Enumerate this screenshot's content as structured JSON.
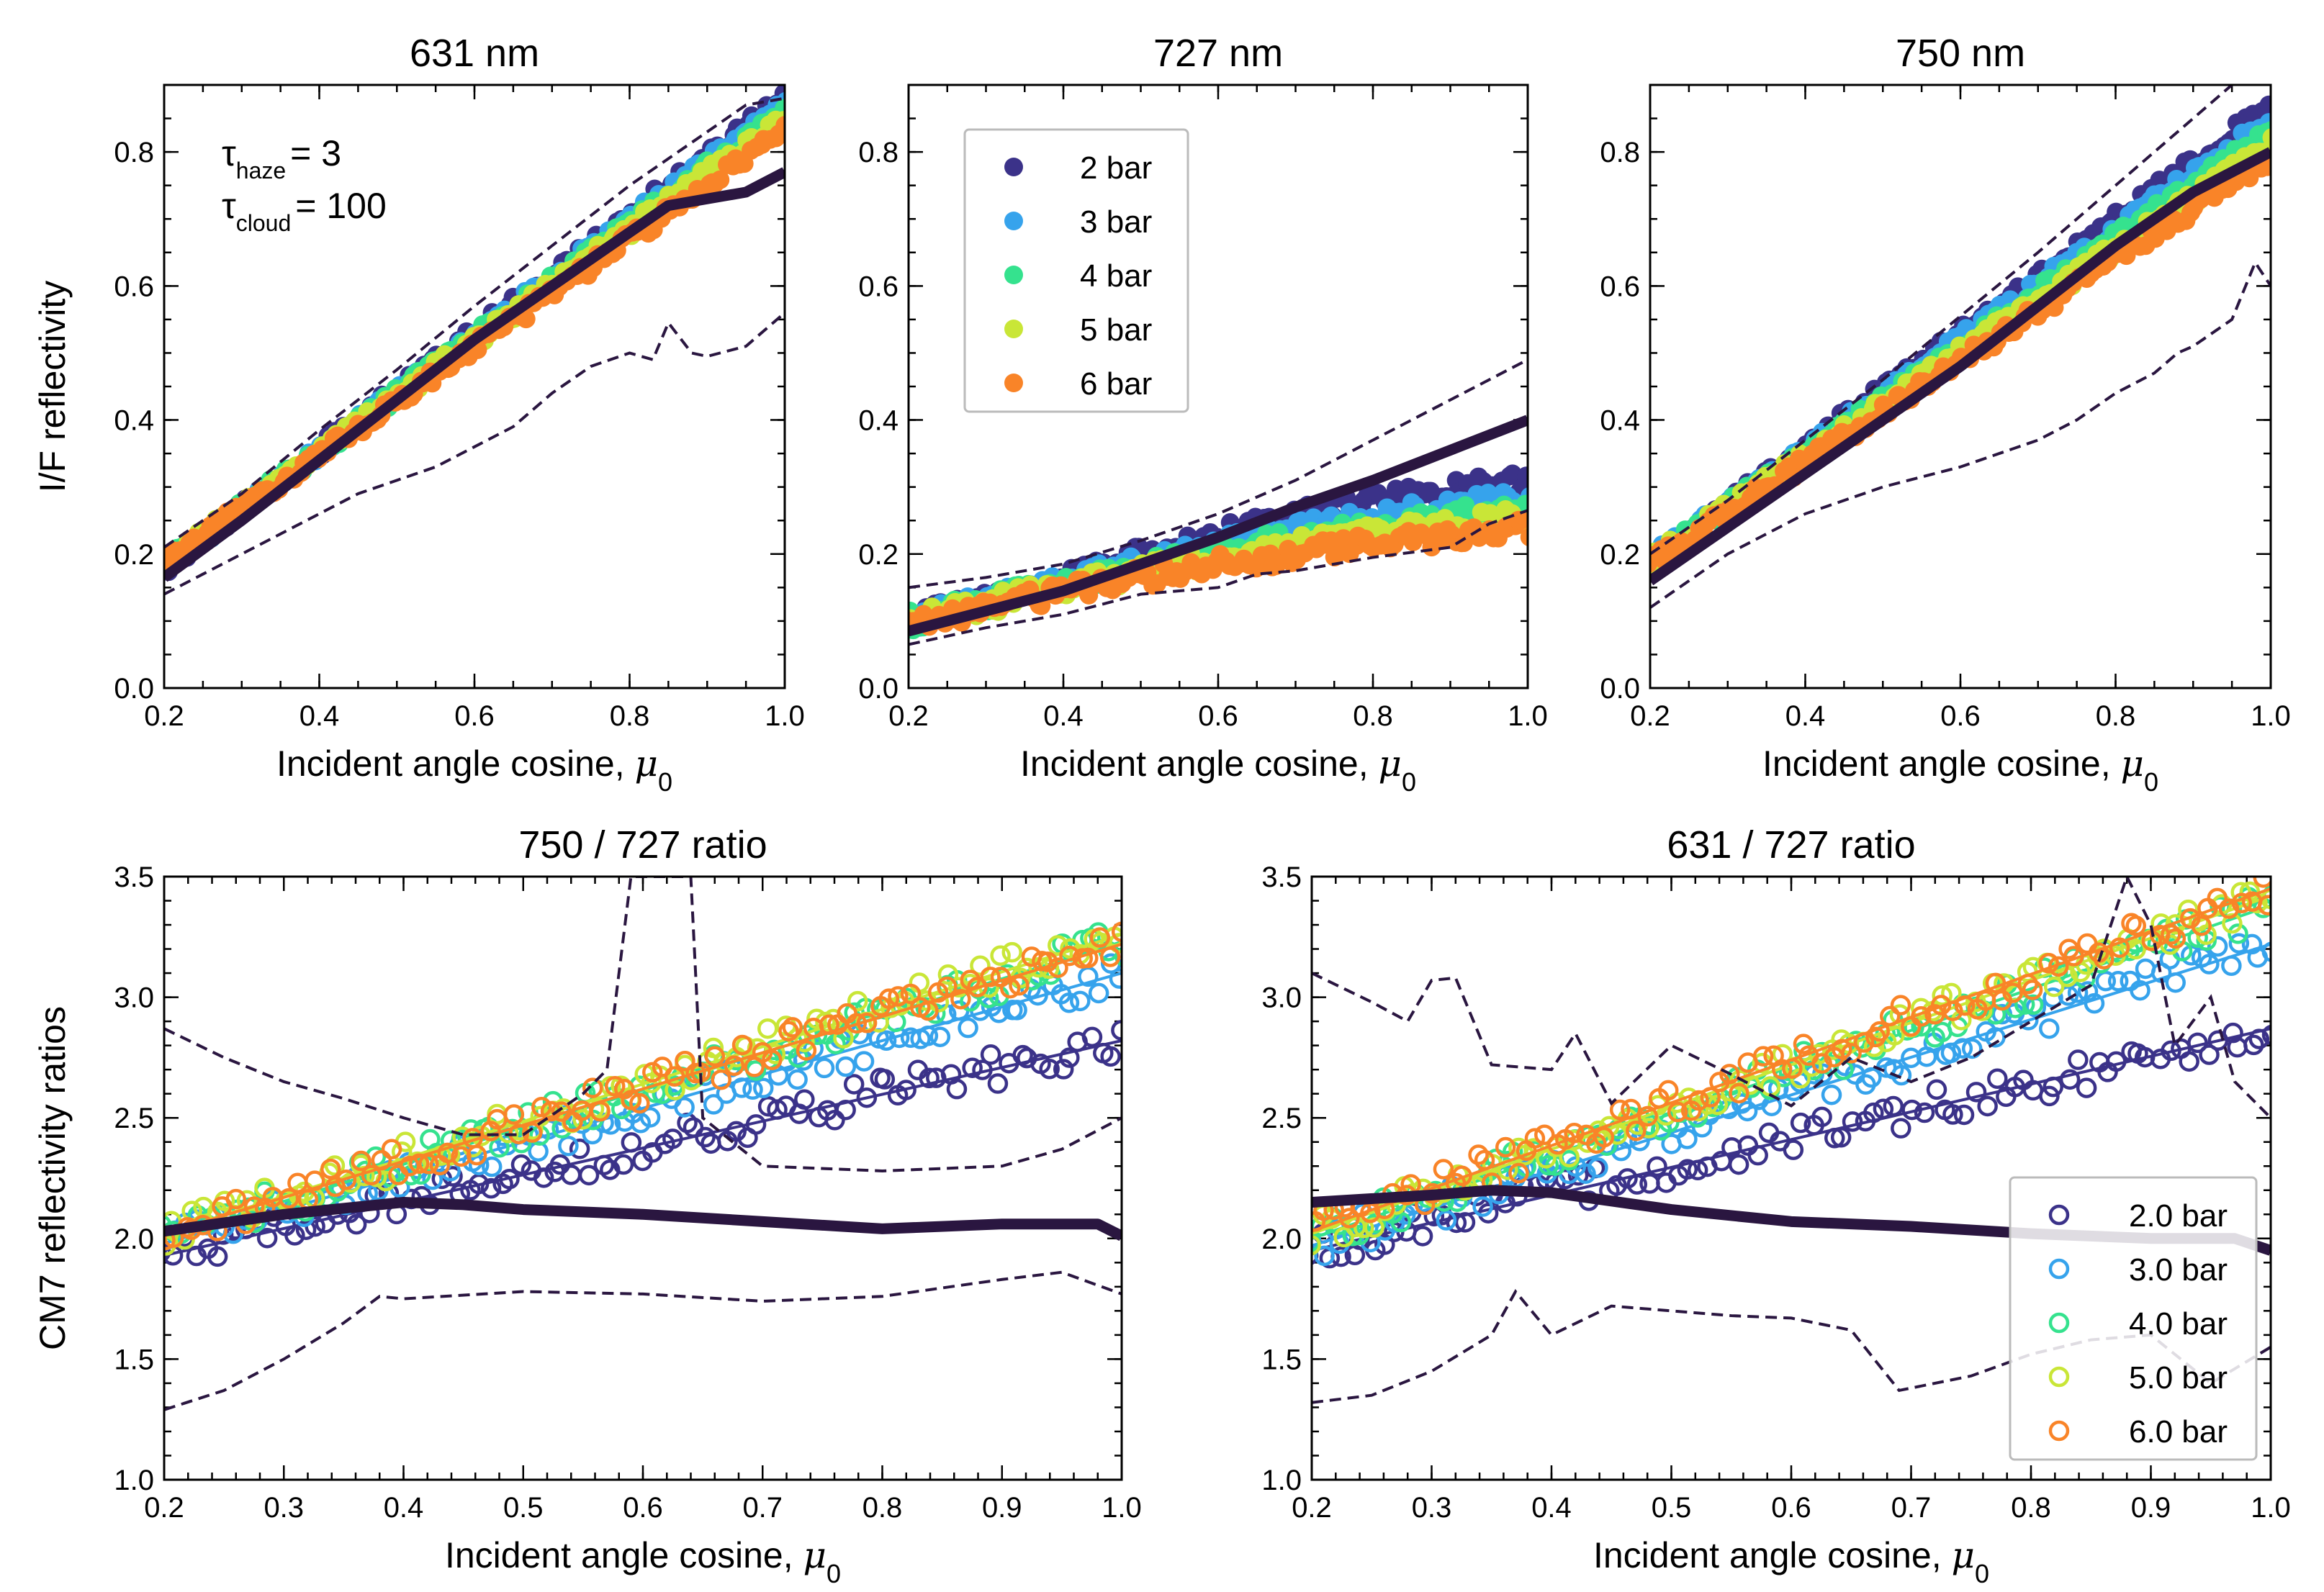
{
  "chart_data": [
    {
      "id": "p631",
      "type": "scatter",
      "title": "631 nm",
      "xlabel": "Incident angle cosine, ",
      "xlabel_symbol": "μ",
      "xlabel_sub": "0",
      "ylabel": "I/F reflectivity",
      "xlim": [
        0.2,
        1.0
      ],
      "ylim": [
        0.0,
        0.9
      ],
      "xticks": [
        "0.2",
        "0.4",
        "0.6",
        "0.8",
        "1.0"
      ],
      "yticks": [
        "0.0",
        "0.2",
        "0.4",
        "0.6",
        "0.8"
      ],
      "series": [
        {
          "name": "2 bar",
          "color": "#3b3289",
          "x": [
            0.2,
            1.0
          ],
          "y": [
            0.18,
            0.88
          ]
        },
        {
          "name": "3 bar",
          "color": "#36a3ec",
          "x": [
            0.2,
            1.0
          ],
          "y": [
            0.182,
            0.87
          ]
        },
        {
          "name": "4 bar",
          "color": "#35e28e",
          "x": [
            0.2,
            1.0
          ],
          "y": [
            0.184,
            0.86
          ]
        },
        {
          "name": "5 bar",
          "color": "#c9e637",
          "x": [
            0.2,
            1.0
          ],
          "y": [
            0.186,
            0.85
          ]
        },
        {
          "name": "6 bar",
          "color": "#f98428",
          "x": [
            0.2,
            1.0
          ],
          "y": [
            0.188,
            0.83
          ]
        }
      ],
      "observed": {
        "color": "#2a1640",
        "mean": {
          "x": [
            0.2,
            0.3,
            0.4,
            0.5,
            0.6,
            0.7,
            0.8,
            0.85,
            0.9,
            0.95,
            1.0
          ],
          "y": [
            0.165,
            0.25,
            0.34,
            0.43,
            0.52,
            0.6,
            0.68,
            0.72,
            0.73,
            0.74,
            0.77
          ]
        },
        "upper": {
          "x": [
            0.2,
            0.3,
            0.4,
            0.5,
            0.6,
            0.7,
            0.8,
            0.9,
            0.95,
            1.0
          ],
          "y": [
            0.21,
            0.29,
            0.385,
            0.475,
            0.57,
            0.66,
            0.75,
            0.83,
            0.87,
            0.88
          ]
        },
        "lower": {
          "x": [
            0.2,
            0.25,
            0.3,
            0.35,
            0.4,
            0.45,
            0.5,
            0.55,
            0.6,
            0.65,
            0.7,
            0.75,
            0.8,
            0.83,
            0.85,
            0.88,
            0.9,
            0.95,
            1.0
          ],
          "y": [
            0.14,
            0.17,
            0.2,
            0.23,
            0.26,
            0.29,
            0.31,
            0.33,
            0.36,
            0.39,
            0.44,
            0.48,
            0.5,
            0.49,
            0.545,
            0.5,
            0.495,
            0.51,
            0.56
          ]
        }
      }
    },
    {
      "id": "p727",
      "type": "scatter",
      "title": "727 nm",
      "xlabel": "Incident angle cosine, ",
      "xlabel_symbol": "μ",
      "xlabel_sub": "0",
      "ylabel": "",
      "xlim": [
        0.2,
        1.0
      ],
      "ylim": [
        0.0,
        0.9
      ],
      "xticks": [
        "0.2",
        "0.4",
        "0.6",
        "0.8",
        "1.0"
      ],
      "yticks": [
        "0.0",
        "0.2",
        "0.4",
        "0.6",
        "0.8"
      ],
      "series": [
        {
          "name": "2 bar",
          "color": "#3b3289",
          "x": [
            0.2,
            0.4,
            0.6,
            0.8,
            1.0
          ],
          "y": [
            0.1,
            0.165,
            0.23,
            0.28,
            0.31
          ]
        },
        {
          "name": "3 bar",
          "color": "#36a3ec",
          "x": [
            0.2,
            0.4,
            0.6,
            0.8,
            1.0
          ],
          "y": [
            0.1,
            0.16,
            0.215,
            0.255,
            0.285
          ]
        },
        {
          "name": "4 bar",
          "color": "#35e28e",
          "x": [
            0.2,
            0.4,
            0.6,
            0.8,
            1.0
          ],
          "y": [
            0.1,
            0.155,
            0.205,
            0.24,
            0.27
          ]
        },
        {
          "name": "5 bar",
          "color": "#c9e637",
          "x": [
            0.2,
            0.4,
            0.6,
            0.8,
            1.0
          ],
          "y": [
            0.1,
            0.15,
            0.195,
            0.23,
            0.255
          ]
        },
        {
          "name": "6 bar",
          "color": "#f98428",
          "x": [
            0.2,
            0.4,
            0.6,
            0.8,
            1.0
          ],
          "y": [
            0.095,
            0.145,
            0.185,
            0.215,
            0.24
          ]
        }
      ],
      "observed": {
        "color": "#2a1640",
        "mean": {
          "x": [
            0.2,
            0.3,
            0.4,
            0.5,
            0.6,
            0.7,
            0.8,
            0.9,
            1.0
          ],
          "y": [
            0.085,
            0.115,
            0.145,
            0.185,
            0.225,
            0.27,
            0.31,
            0.355,
            0.4
          ]
        },
        "upper": {
          "x": [
            0.2,
            0.3,
            0.4,
            0.5,
            0.6,
            0.7,
            0.8,
            0.9,
            1.0
          ],
          "y": [
            0.15,
            0.165,
            0.185,
            0.22,
            0.26,
            0.31,
            0.37,
            0.43,
            0.49
          ]
        },
        "lower": {
          "x": [
            0.2,
            0.3,
            0.4,
            0.5,
            0.6,
            0.65,
            0.7,
            0.8,
            0.9,
            0.95,
            1.0
          ],
          "y": [
            0.065,
            0.09,
            0.11,
            0.14,
            0.15,
            0.17,
            0.175,
            0.195,
            0.21,
            0.245,
            0.265
          ]
        }
      },
      "legend": {
        "position": "upper-left",
        "marker": "filled",
        "labels": [
          "2 bar",
          "3 bar",
          "4 bar",
          "5 bar",
          "6 bar"
        ]
      }
    },
    {
      "id": "p750",
      "type": "scatter",
      "title": "750 nm",
      "xlabel": "Incident angle cosine, ",
      "xlabel_symbol": "μ",
      "xlabel_sub": "0",
      "ylabel": "",
      "xlim": [
        0.2,
        1.0
      ],
      "ylim": [
        0.0,
        0.9
      ],
      "xticks": [
        "0.2",
        "0.4",
        "0.6",
        "0.8",
        "1.0"
      ],
      "yticks": [
        "0.0",
        "0.2",
        "0.4",
        "0.6",
        "0.8"
      ],
      "series": [
        {
          "name": "2 bar",
          "color": "#3b3289",
          "x": [
            0.2,
            1.0
          ],
          "y": [
            0.19,
            0.87
          ]
        },
        {
          "name": "3 bar",
          "color": "#36a3ec",
          "x": [
            0.2,
            1.0
          ],
          "y": [
            0.19,
            0.85
          ]
        },
        {
          "name": "4 bar",
          "color": "#35e28e",
          "x": [
            0.2,
            1.0
          ],
          "y": [
            0.19,
            0.83
          ]
        },
        {
          "name": "5 bar",
          "color": "#c9e637",
          "x": [
            0.2,
            1.0
          ],
          "y": [
            0.19,
            0.81
          ]
        },
        {
          "name": "6 bar",
          "color": "#f98428",
          "x": [
            0.2,
            1.0
          ],
          "y": [
            0.185,
            0.79
          ]
        }
      ],
      "observed": {
        "color": "#2a1640",
        "mean": {
          "x": [
            0.2,
            0.3,
            0.4,
            0.5,
            0.6,
            0.7,
            0.8,
            0.9,
            0.95,
            1.0
          ],
          "y": [
            0.16,
            0.24,
            0.32,
            0.4,
            0.48,
            0.57,
            0.66,
            0.74,
            0.77,
            0.8
          ]
        },
        "upper": {
          "x": [
            0.2,
            0.3,
            0.4,
            0.5,
            0.6,
            0.7,
            0.8,
            0.9,
            0.95,
            1.0
          ],
          "y": [
            0.2,
            0.28,
            0.37,
            0.46,
            0.555,
            0.65,
            0.75,
            0.85,
            0.9,
            0.93
          ]
        },
        "lower": {
          "x": [
            0.2,
            0.3,
            0.4,
            0.5,
            0.6,
            0.7,
            0.75,
            0.8,
            0.85,
            0.88,
            0.9,
            0.95,
            0.98,
            1.0
          ],
          "y": [
            0.12,
            0.2,
            0.26,
            0.3,
            0.33,
            0.37,
            0.4,
            0.44,
            0.47,
            0.5,
            0.51,
            0.55,
            0.635,
            0.6
          ]
        }
      }
    },
    {
      "id": "r750",
      "type": "scatter",
      "title": "750 / 727 ratio",
      "xlabel": "Incident angle cosine, ",
      "xlabel_symbol": "μ",
      "xlabel_sub": "0",
      "ylabel": "CM7 reflectivity ratios",
      "xlim": [
        0.2,
        1.0
      ],
      "ylim": [
        1.0,
        3.5
      ],
      "xticks": [
        "0.2",
        "0.3",
        "0.4",
        "0.5",
        "0.6",
        "0.7",
        "0.8",
        "0.9",
        "1.0"
      ],
      "yticks": [
        "1.0",
        "1.5",
        "2.0",
        "2.5",
        "3.0",
        "3.5"
      ],
      "series": [
        {
          "name": "2.0 bar",
          "color": "#3b3289",
          "x": [
            0.2,
            1.0
          ],
          "y": [
            1.93,
            2.82
          ]
        },
        {
          "name": "3.0 bar",
          "color": "#36a3ec",
          "x": [
            0.2,
            1.0
          ],
          "y": [
            1.98,
            3.1
          ]
        },
        {
          "name": "4.0 bar",
          "color": "#35e28e",
          "x": [
            0.2,
            1.0
          ],
          "y": [
            2.0,
            3.23
          ]
        },
        {
          "name": "5.0 bar",
          "color": "#c9e637",
          "x": [
            0.2,
            1.0
          ],
          "y": [
            2.02,
            3.26
          ]
        },
        {
          "name": "6.0 bar",
          "color": "#f98428",
          "x": [
            0.2,
            1.0
          ],
          "y": [
            2.02,
            3.22
          ]
        }
      ],
      "observed": {
        "color": "#2a1640",
        "mean": {
          "x": [
            0.2,
            0.3,
            0.4,
            0.45,
            0.5,
            0.6,
            0.7,
            0.8,
            0.9,
            0.98,
            1.0
          ],
          "y": [
            2.03,
            2.1,
            2.15,
            2.14,
            2.12,
            2.1,
            2.07,
            2.04,
            2.06,
            2.06,
            2.01
          ]
        },
        "upper": {
          "x": [
            0.2,
            0.25,
            0.3,
            0.35,
            0.4,
            0.45,
            0.5,
            0.55,
            0.57,
            0.59,
            0.6,
            0.64,
            0.65,
            0.7,
            0.8,
            0.9,
            0.95,
            1.0
          ],
          "y": [
            2.87,
            2.75,
            2.65,
            2.58,
            2.5,
            2.43,
            2.43,
            2.6,
            2.7,
            3.5,
            3.5,
            3.5,
            2.5,
            2.3,
            2.28,
            2.3,
            2.37,
            2.5
          ]
        },
        "lower": {
          "x": [
            0.2,
            0.25,
            0.3,
            0.35,
            0.38,
            0.4,
            0.5,
            0.6,
            0.7,
            0.8,
            0.9,
            0.95,
            1.0
          ],
          "y": [
            1.29,
            1.37,
            1.5,
            1.65,
            1.76,
            1.75,
            1.78,
            1.77,
            1.74,
            1.76,
            1.83,
            1.86,
            1.77
          ]
        }
      }
    },
    {
      "id": "r631",
      "type": "scatter",
      "title": "631 / 727 ratio",
      "xlabel": "Incident angle cosine, ",
      "xlabel_symbol": "μ",
      "xlabel_sub": "0",
      "ylabel": "",
      "xlim": [
        0.2,
        1.0
      ],
      "ylim": [
        1.0,
        3.5
      ],
      "xticks": [
        "0.2",
        "0.3",
        "0.4",
        "0.5",
        "0.6",
        "0.7",
        "0.8",
        "0.9",
        "1.0"
      ],
      "yticks": [
        "1.0",
        "1.5",
        "2.0",
        "2.5",
        "3.0",
        "3.5"
      ],
      "series": [
        {
          "name": "2.0 bar",
          "color": "#3b3289",
          "x": [
            0.2,
            1.0
          ],
          "y": [
            1.95,
            2.87
          ]
        },
        {
          "name": "3.0 bar",
          "color": "#36a3ec",
          "x": [
            0.2,
            1.0
          ],
          "y": [
            1.97,
            3.22
          ]
        },
        {
          "name": "4.0 bar",
          "color": "#35e28e",
          "x": [
            0.2,
            1.0
          ],
          "y": [
            2.0,
            3.38
          ]
        },
        {
          "name": "5.0 bar",
          "color": "#c9e637",
          "x": [
            0.2,
            1.0
          ],
          "y": [
            2.02,
            3.42
          ]
        },
        {
          "name": "6.0 bar",
          "color": "#f98428",
          "x": [
            0.2,
            1.0
          ],
          "y": [
            2.03,
            3.45
          ]
        }
      ],
      "observed": {
        "color": "#2a1640",
        "mean": {
          "x": [
            0.2,
            0.3,
            0.35,
            0.4,
            0.5,
            0.6,
            0.7,
            0.8,
            0.9,
            0.97,
            1.0
          ],
          "y": [
            2.15,
            2.18,
            2.2,
            2.19,
            2.12,
            2.07,
            2.05,
            2.02,
            2.0,
            2.0,
            1.95
          ]
        },
        "upper": {
          "x": [
            0.2,
            0.25,
            0.28,
            0.3,
            0.32,
            0.35,
            0.4,
            0.42,
            0.45,
            0.5,
            0.55,
            0.6,
            0.65,
            0.7,
            0.75,
            0.8,
            0.85,
            0.88,
            0.9,
            0.92,
            0.95,
            0.97,
            1.0
          ],
          "y": [
            3.1,
            2.98,
            2.9,
            3.07,
            3.08,
            2.72,
            2.7,
            2.85,
            2.56,
            2.8,
            2.68,
            2.55,
            2.75,
            2.65,
            2.75,
            2.9,
            3.05,
            3.5,
            3.3,
            2.8,
            3.0,
            2.65,
            2.5
          ]
        },
        "lower": {
          "x": [
            0.2,
            0.25,
            0.3,
            0.35,
            0.37,
            0.4,
            0.45,
            0.5,
            0.55,
            0.6,
            0.65,
            0.69,
            0.75,
            0.8,
            0.85,
            0.9,
            0.95,
            1.0
          ],
          "y": [
            1.32,
            1.35,
            1.45,
            1.6,
            1.78,
            1.6,
            1.72,
            1.7,
            1.68,
            1.67,
            1.62,
            1.37,
            1.43,
            1.52,
            1.58,
            1.6,
            1.4,
            1.55
          ]
        }
      },
      "legend": {
        "position": "lower-right",
        "marker": "open",
        "labels": [
          "2.0 bar",
          "3.0 bar",
          "4.0 bar",
          "5.0 bar",
          "6.0 bar"
        ]
      }
    }
  ],
  "annotation": {
    "haze_symbol": "τ",
    "haze_sub": "haze",
    "haze_value": "= 3",
    "cloud_symbol": "τ",
    "cloud_sub": "cloud",
    "cloud_value": "= 100"
  }
}
